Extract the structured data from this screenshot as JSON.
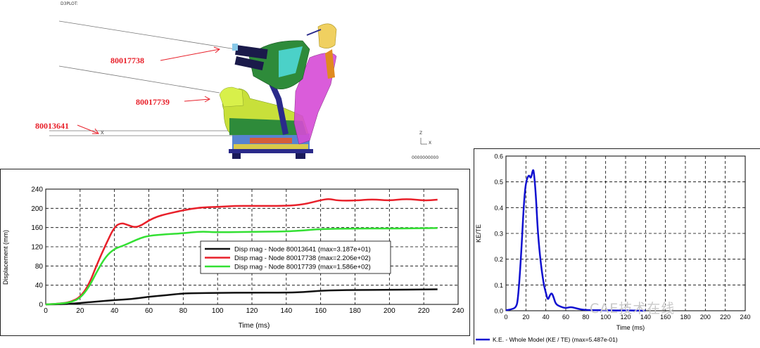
{
  "scene": {
    "plot_title": "D3PLOT:",
    "node_labels": [
      "80017738",
      "80017739",
      "80013641"
    ],
    "triad": {
      "z": "Z",
      "x": "X"
    },
    "footer": "0000000000"
  },
  "colors": {
    "black_series": "#111111",
    "red_series": "#e8202a",
    "green_series": "#33e033",
    "blue_series": "#1010d0",
    "seat_green": "#2e8b3a",
    "seat_magenta": "#d64bd6",
    "seat_yellow": "#c8e03a",
    "seat_navy": "#2a2a8a"
  },
  "chart_data": [
    {
      "type": "line",
      "title": "",
      "xlabel": "Time (ms)",
      "ylabel": "Displacement (mm)",
      "xlim": [
        0,
        240
      ],
      "ylim": [
        0,
        240
      ],
      "xticks": [
        0,
        20,
        40,
        60,
        80,
        100,
        120,
        140,
        160,
        180,
        200,
        220,
        240
      ],
      "yticks": [
        0,
        40,
        80,
        120,
        160,
        200,
        240
      ],
      "grid": true,
      "legend_position": "center",
      "series": [
        {
          "name": "Disp mag - Node 80013641 (max=3.187e+01)",
          "color": "#111111",
          "x": [
            0,
            10,
            15,
            20,
            30,
            40,
            50,
            60,
            70,
            80,
            90,
            100,
            120,
            140,
            150,
            160,
            170,
            180,
            200,
            220,
            228
          ],
          "y": [
            0,
            0.5,
            1.5,
            3,
            6,
            9,
            11,
            16,
            19,
            23,
            23.5,
            24,
            24.5,
            24.5,
            25.5,
            28.5,
            29.5,
            30,
            30.5,
            31,
            31.5
          ]
        },
        {
          "name": "Disp mag - Node 80017738 (max=2.206e+02)",
          "color": "#e8202a",
          "x": [
            0,
            10,
            15,
            20,
            25,
            30,
            35,
            40,
            44,
            48,
            52,
            56,
            60,
            65,
            70,
            80,
            90,
            100,
            110,
            120,
            140,
            150,
            160,
            165,
            170,
            180,
            190,
            200,
            210,
            220,
            228
          ],
          "y": [
            0,
            2,
            6,
            15,
            40,
            85,
            125,
            162,
            170,
            165,
            160,
            165,
            175,
            183,
            188,
            196,
            202,
            203,
            205,
            205,
            205,
            208,
            217,
            220,
            216,
            216,
            219,
            216,
            220,
            216,
            218
          ]
        },
        {
          "name": "Disp mag - Node 80017739 (max=1.586e+02)",
          "color": "#33e033",
          "x": [
            0,
            10,
            15,
            20,
            25,
            30,
            35,
            40,
            45,
            50,
            55,
            60,
            70,
            80,
            90,
            100,
            120,
            140,
            150,
            160,
            180,
            200,
            228
          ],
          "y": [
            0,
            2,
            5,
            13,
            35,
            70,
            100,
            116,
            122,
            130,
            138,
            143,
            146,
            148,
            152,
            150,
            151,
            152,
            154,
            157,
            158,
            158,
            159
          ]
        }
      ]
    },
    {
      "type": "line",
      "title": "",
      "xlabel": "Time (ms)",
      "ylabel": "KE/TE",
      "xlim": [
        0,
        240
      ],
      "ylim": [
        0,
        0.6
      ],
      "xticks": [
        0,
        20,
        40,
        60,
        80,
        100,
        120,
        140,
        160,
        180,
        200,
        220,
        240
      ],
      "yticks": [
        0.0,
        0.1,
        0.2,
        0.3,
        0.4,
        0.5,
        0.6
      ],
      "grid": true,
      "legend_position": "bottom",
      "series": [
        {
          "name": "K.E. - Whole Model (KE / TE) (max=5.487e-01)",
          "color": "#1010d0",
          "x": [
            0,
            5,
            10,
            12,
            15,
            18,
            20,
            23,
            25,
            27,
            28,
            30,
            32,
            35,
            38,
            40,
            42,
            44,
            46,
            48,
            50,
            55,
            60,
            65,
            70,
            75,
            80,
            90,
            100,
            110,
            120,
            130,
            140
          ],
          "y": [
            0.002,
            0.005,
            0.012,
            0.04,
            0.2,
            0.42,
            0.5,
            0.53,
            0.51,
            0.549,
            0.54,
            0.45,
            0.3,
            0.18,
            0.1,
            0.07,
            0.04,
            0.06,
            0.07,
            0.05,
            0.025,
            0.015,
            0.01,
            0.015,
            0.01,
            0.005,
            0.003,
            0.002,
            0.002,
            0.001,
            0.001,
            0.001,
            0.0
          ]
        }
      ]
    }
  ],
  "watermark": "CAE技术在线"
}
